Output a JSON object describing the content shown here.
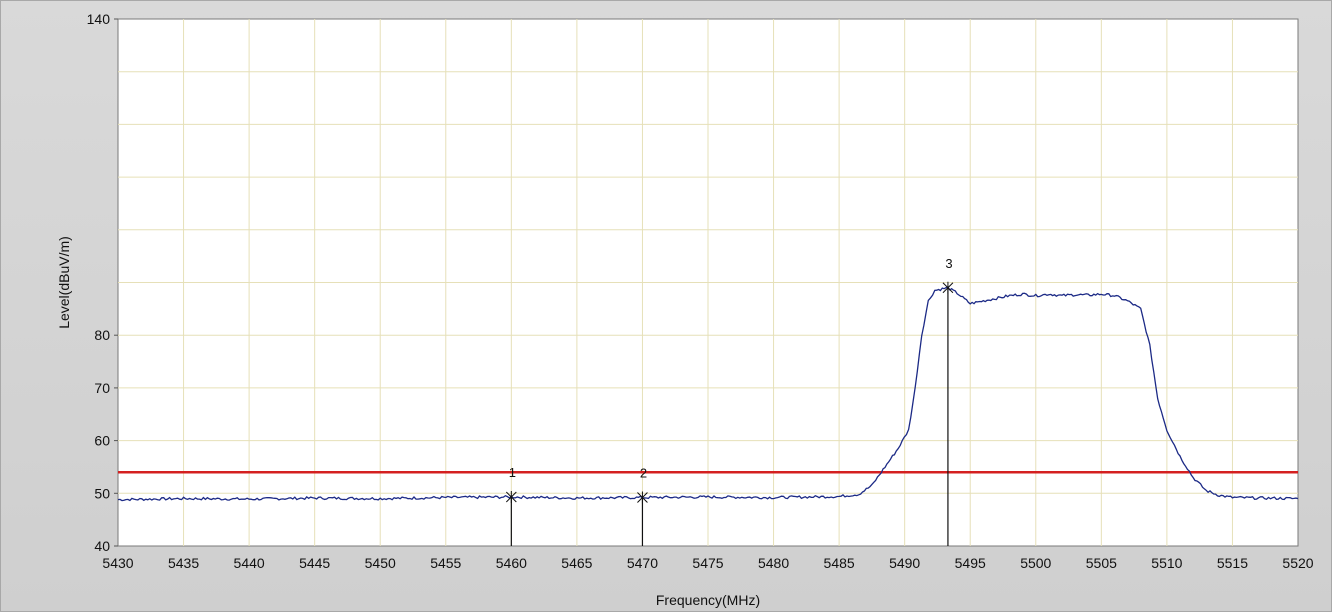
{
  "chart_data": {
    "type": "line",
    "title": "",
    "xlabel": "Frequency(MHz)",
    "ylabel": "Level(dBuV/m)",
    "xlim": [
      5430,
      5520
    ],
    "ylim": [
      40,
      140
    ],
    "x_ticks": [
      5430,
      5435,
      5440,
      5445,
      5450,
      5455,
      5460,
      5465,
      5470,
      5475,
      5480,
      5485,
      5490,
      5495,
      5500,
      5505,
      5510,
      5515,
      5520
    ],
    "y_ticks": [
      40,
      50,
      60,
      70,
      80,
      140
    ],
    "grid": true,
    "limit_line": {
      "y": 54,
      "color": "#d42020"
    },
    "series": [
      {
        "color": "#1c2a86",
        "points": [
          [
            5430,
            48.8
          ],
          [
            5435,
            49.0
          ],
          [
            5440,
            48.9
          ],
          [
            5445,
            49.1
          ],
          [
            5450,
            49.0
          ],
          [
            5455,
            49.2
          ],
          [
            5460,
            49.3
          ],
          [
            5465,
            49.1
          ],
          [
            5470,
            49.2
          ],
          [
            5475,
            49.3
          ],
          [
            5480,
            49.2
          ],
          [
            5485,
            49.4
          ],
          [
            5486.5,
            49.8
          ],
          [
            5487.5,
            51.5
          ],
          [
            5488.5,
            55.0
          ],
          [
            5489.5,
            58.5
          ],
          [
            5490.3,
            62.0
          ],
          [
            5490.8,
            70.0
          ],
          [
            5491.3,
            80.0
          ],
          [
            5491.8,
            86.5
          ],
          [
            5492.3,
            88.5
          ],
          [
            5493.3,
            89.0
          ],
          [
            5494,
            88.0
          ],
          [
            5495,
            86.0
          ],
          [
            5496,
            86.5
          ],
          [
            5497,
            87.0
          ],
          [
            5498,
            87.5
          ],
          [
            5499,
            87.8
          ],
          [
            5500,
            87.5
          ],
          [
            5501,
            87.8
          ],
          [
            5502,
            87.5
          ],
          [
            5503,
            87.7
          ],
          [
            5504,
            87.6
          ],
          [
            5505,
            87.8
          ],
          [
            5506,
            87.5
          ],
          [
            5507,
            86.5
          ],
          [
            5508,
            85.0
          ],
          [
            5508.7,
            78.0
          ],
          [
            5509.3,
            68.0
          ],
          [
            5510,
            62.0
          ],
          [
            5511,
            57.0
          ],
          [
            5512,
            53.0
          ],
          [
            5513,
            50.5
          ],
          [
            5514,
            49.6
          ],
          [
            5515,
            49.2
          ],
          [
            5517,
            49.1
          ],
          [
            5520,
            49.0
          ]
        ]
      }
    ],
    "markers": [
      {
        "label": "1",
        "x": 5460,
        "y": 49.3
      },
      {
        "label": "2",
        "x": 5470,
        "y": 49.2
      },
      {
        "label": "3",
        "x": 5493.3,
        "y": 89.0
      }
    ]
  }
}
